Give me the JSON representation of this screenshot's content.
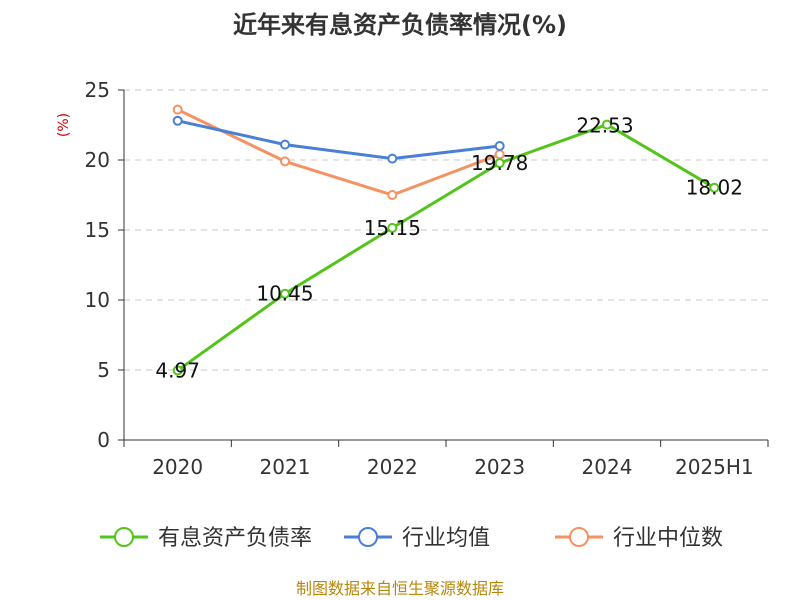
{
  "chart_data": {
    "type": "line",
    "title": "近年来有息资产负债率情况(%)",
    "y_unit": "(%)",
    "categories": [
      "2020",
      "2021",
      "2022",
      "2023",
      "2024",
      "2025H1"
    ],
    "ylim": [
      0,
      25
    ],
    "yticks": [
      0,
      5,
      10,
      15,
      20,
      25
    ],
    "grid": true,
    "legend_position": "bottom",
    "series": [
      {
        "name": "有息资产负债率",
        "color": "#52c41a",
        "values": [
          4.97,
          10.45,
          15.15,
          19.78,
          22.53,
          18.02
        ],
        "labels": [
          "4.97",
          "10.45",
          "15.15",
          "19.78",
          "22.53",
          "18.02"
        ]
      },
      {
        "name": "行业均值",
        "color": "#4a7fd6",
        "values": [
          22.8,
          21.1,
          20.1,
          21.0,
          null,
          null
        ]
      },
      {
        "name": "行业中位数",
        "color": "#f59262",
        "values": [
          23.6,
          19.9,
          17.5,
          20.4,
          null,
          null
        ]
      }
    ]
  },
  "source_note": "制图数据来自恒生聚源数据库"
}
